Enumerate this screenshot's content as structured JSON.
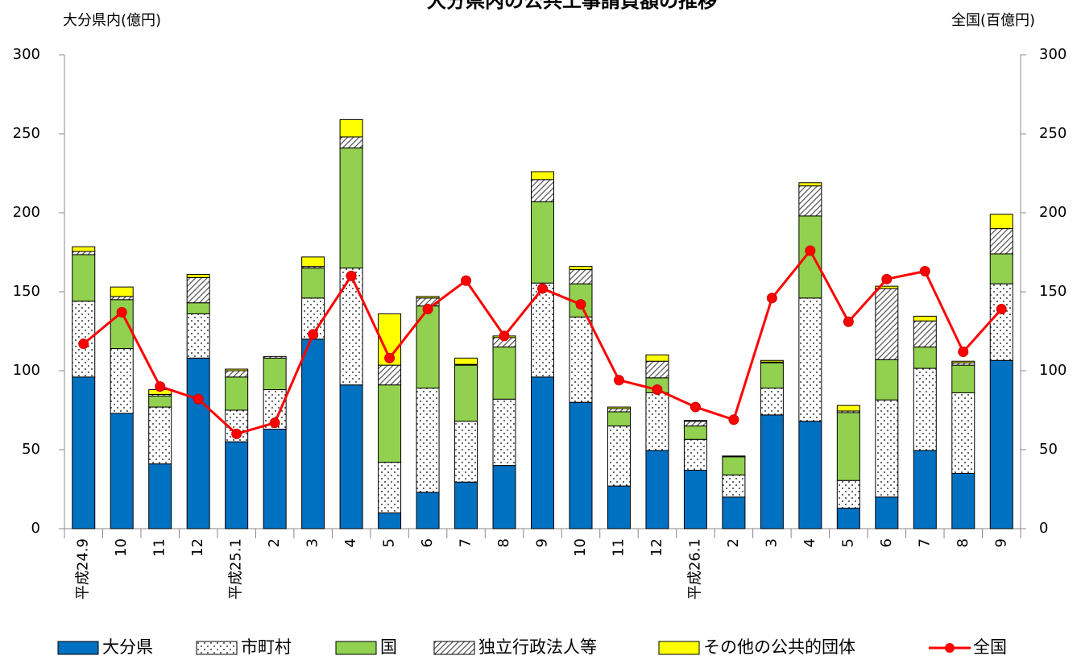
{
  "chart_data": {
    "type": "stacked-bar-line",
    "title": "大分県内の公共工事請負額の推移",
    "y_label": "大分県内(億円)",
    "y2_label": "全国(百億円)",
    "categories": [
      "平成24.9",
      "10",
      "11",
      "12",
      "平成25.1",
      "2",
      "3",
      "4",
      "5",
      "6",
      "7",
      "8",
      "9",
      "10",
      "11",
      "12",
      "平成26.1",
      "2",
      "3",
      "4",
      "5",
      "6",
      "7",
      "8",
      "9"
    ],
    "ylim": [
      0,
      300
    ],
    "yticks": [
      0,
      50,
      100,
      150,
      200,
      250,
      300
    ],
    "y2lim": [
      0,
      300
    ],
    "y2ticks": [
      0,
      50,
      100,
      150,
      200,
      250,
      300
    ],
    "series": [
      {
        "name": "大分県",
        "color": "#0070c0",
        "pattern": "solid",
        "values": [
          96,
          73,
          41,
          108,
          55,
          63,
          120,
          91,
          10,
          23,
          29.5,
          40,
          96,
          80,
          27,
          49.5,
          37,
          20,
          72,
          68,
          13,
          20,
          49.5,
          35,
          106.5
        ]
      },
      {
        "name": "市町村",
        "color": "#ffffff",
        "pattern": "dots",
        "values": [
          48,
          41,
          36,
          28,
          20,
          25,
          26,
          74,
          32,
          66,
          38.5,
          42,
          59.5,
          54,
          38,
          36.5,
          19.5,
          14,
          17,
          78,
          17.5,
          61.5,
          52,
          51,
          48.5
        ]
      },
      {
        "name": "国",
        "color": "#92d050",
        "pattern": "solid",
        "values": [
          29.5,
          31,
          7,
          7,
          21,
          20,
          19,
          76,
          49,
          52,
          35.5,
          33,
          51.5,
          21,
          9,
          9.5,
          8.5,
          11.5,
          16,
          52,
          43,
          25.5,
          13.5,
          17.5,
          19
        ]
      },
      {
        "name": "独立行政法人等",
        "color": "#808080",
        "pattern": "hatch",
        "values": [
          2,
          2,
          1,
          16,
          4,
          1,
          1,
          7,
          12.5,
          5,
          0.5,
          6,
          14,
          9,
          2,
          10.5,
          3,
          0.5,
          0.5,
          19,
          1,
          45,
          16.5,
          1.5,
          16
        ]
      },
      {
        "name": "その他の公共的団体",
        "color": "#ffff00",
        "pattern": "solid",
        "values": [
          3,
          6,
          3,
          2,
          1,
          0,
          6,
          11,
          32.5,
          1,
          4,
          1,
          5,
          2,
          1,
          4,
          0.5,
          0,
          1,
          2,
          3.5,
          1.5,
          3,
          1,
          9
        ]
      },
      {
        "name": "全国",
        "color": "#ff0000",
        "axis": "y2",
        "type": "line",
        "values": [
          117,
          137,
          90,
          82,
          60,
          67,
          123,
          160,
          108,
          139,
          157,
          122,
          152,
          142,
          94,
          88,
          77,
          69,
          146,
          176,
          131,
          158,
          163,
          112,
          139
        ]
      }
    ]
  }
}
